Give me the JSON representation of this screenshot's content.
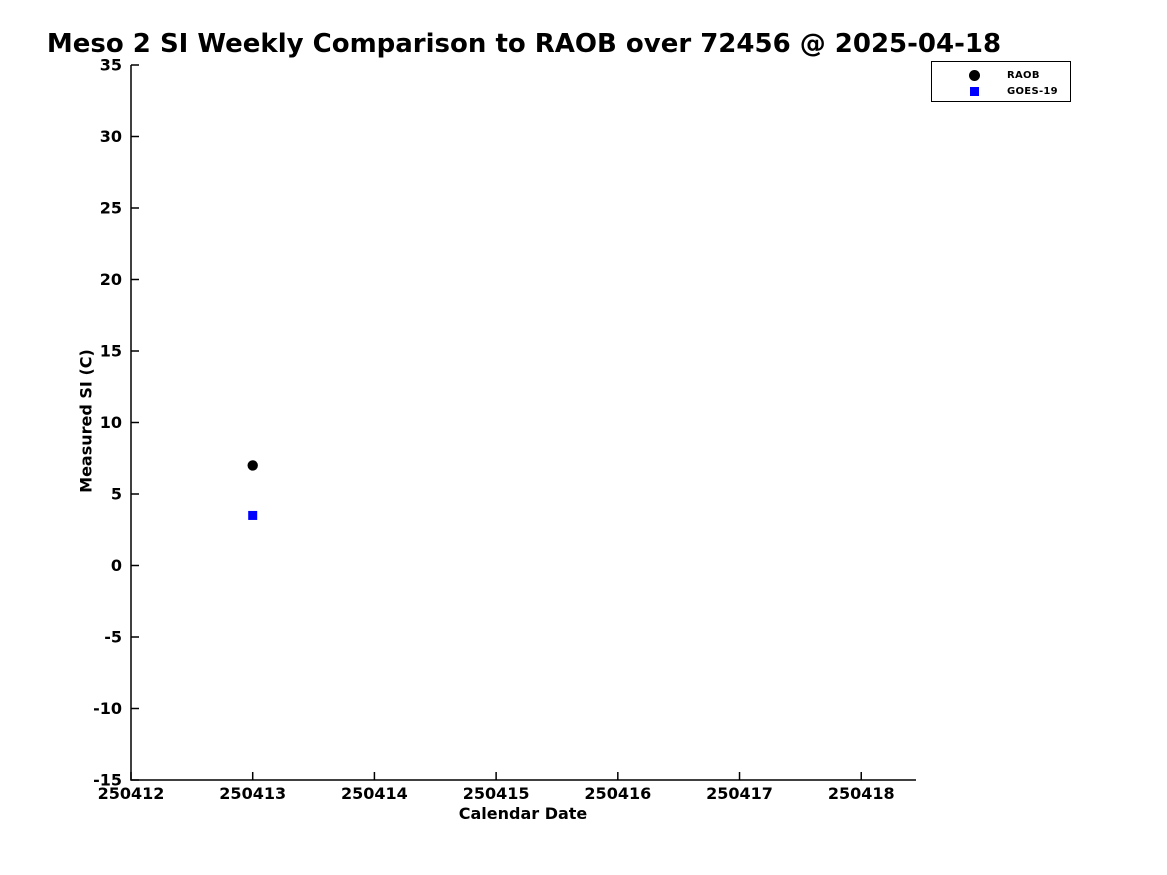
{
  "chart_data": {
    "type": "scatter",
    "title": "Meso 2 SI Weekly Comparison to RAOB over 72456 @ 2025-04-18",
    "xlabel": "Calendar Date",
    "ylabel": "Measured SI (C)",
    "xlim": [
      250412,
      250418.45
    ],
    "ylim": [
      -15,
      35
    ],
    "xticks": [
      250412,
      250413,
      250414,
      250415,
      250416,
      250417,
      250418
    ],
    "yticks": [
      -15,
      -10,
      -5,
      0,
      5,
      10,
      15,
      20,
      25,
      30,
      35
    ],
    "grid": false,
    "legend_position": "top-right",
    "axis_color": "#000000",
    "series": [
      {
        "name": "RAOB",
        "marker": "circle",
        "color": "#000000",
        "points": [
          {
            "x": 250413,
            "y": 7
          }
        ]
      },
      {
        "name": "GOES-19",
        "marker": "square",
        "color": "#0000ff",
        "points": [
          {
            "x": 250413,
            "y": 3.5
          }
        ]
      }
    ]
  }
}
